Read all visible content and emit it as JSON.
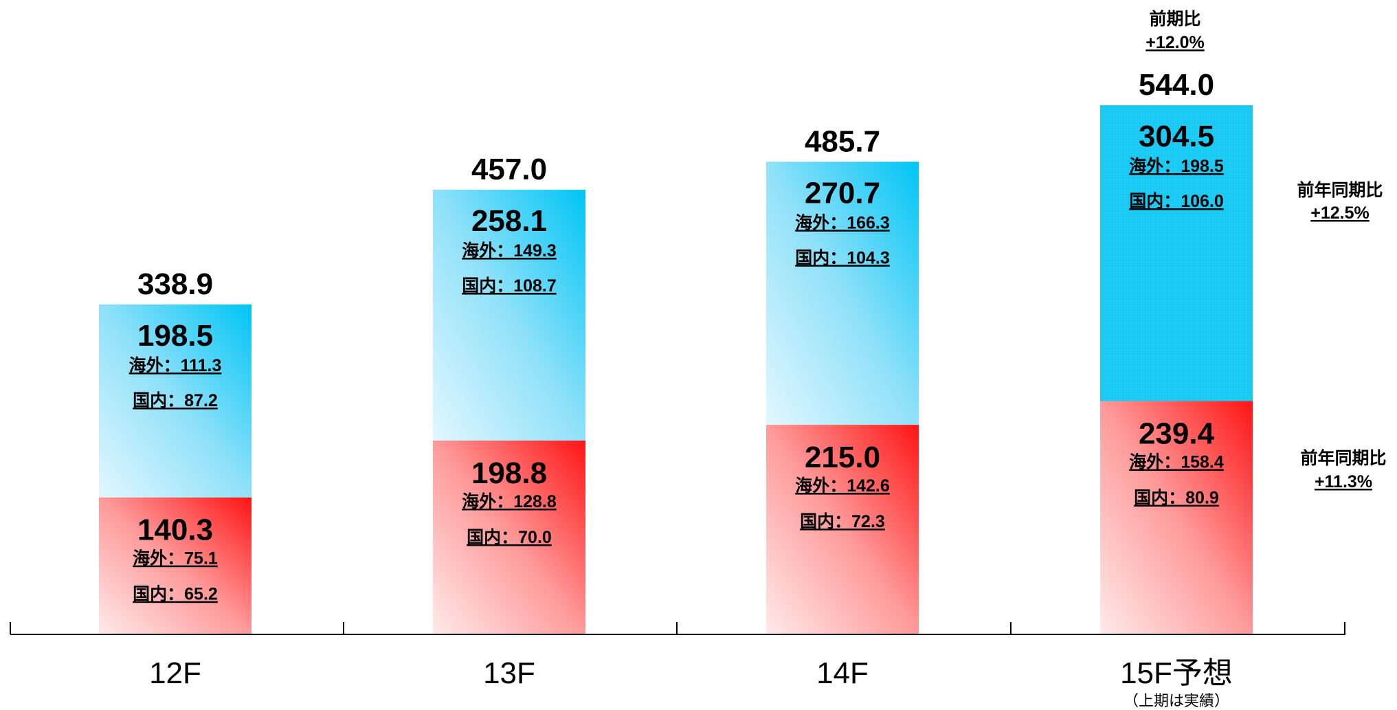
{
  "chart_data": {
    "type": "bar",
    "stacked": true,
    "categories": [
      "12F",
      "13F",
      "14F",
      "15F予想"
    ],
    "category_notes": [
      "",
      "",
      "",
      "（上期は実績）"
    ],
    "totals": [
      "338.9",
      "457.0",
      "485.7",
      "544.0"
    ],
    "ylim": [
      0,
      600
    ],
    "grid": false,
    "series": [
      {
        "values": [
          140.3,
          198.8,
          215.0,
          239.4
        ],
        "labels": [
          "140.3",
          "198.8",
          "215.0",
          "239.4"
        ],
        "overseas": [
          "海外：75.1",
          "海外：128.8",
          "海外：142.6",
          "海外：158.4"
        ],
        "domestic": [
          "国内：65.2",
          "国内：70.0",
          "国内：72.3",
          "国内：80.9"
        ],
        "color": "#ff2020"
      },
      {
        "values": [
          198.5,
          258.1,
          270.7,
          304.5
        ],
        "labels": [
          "198.5",
          "258.1",
          "270.7",
          "304.5"
        ],
        "overseas": [
          "海外：111.3",
          "海外：149.3",
          "海外：166.3",
          "海外：198.5"
        ],
        "domestic": [
          "国内：87.2",
          "国内：108.7",
          "国内：104.3",
          "国内：106.0"
        ],
        "color": "#1ec8f5"
      }
    ],
    "annotations": {
      "total": [
        "前期比",
        "+12.0%"
      ],
      "upper": [
        "前年同期比",
        "+12.5%"
      ],
      "lower": [
        "前年同期比",
        "+11.3%"
      ]
    }
  }
}
